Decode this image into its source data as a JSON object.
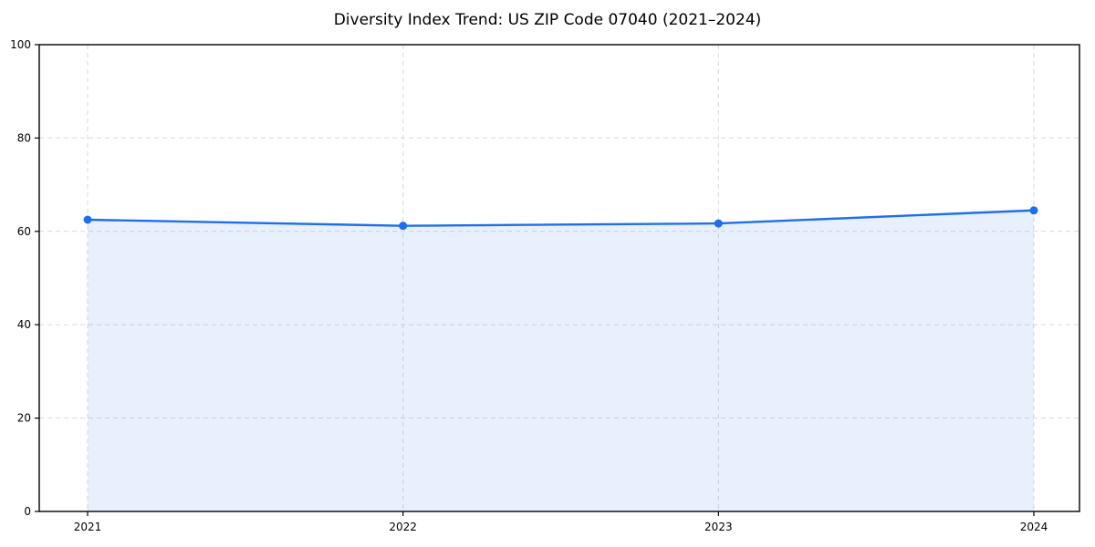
{
  "chart_data": {
    "type": "area",
    "title": "Diversity Index Trend: US ZIP Code 07040 (2021–2024)",
    "categories": [
      "2021",
      "2022",
      "2023",
      "2024"
    ],
    "series": [
      {
        "name": "Diversity Index",
        "values": [
          62.5,
          61.2,
          61.7,
          64.5
        ]
      }
    ],
    "xlabel": "",
    "ylabel": "",
    "ylim": [
      0,
      100
    ],
    "yticks": [
      0,
      20,
      40,
      60,
      80,
      100
    ],
    "grid": {
      "style": "dashed",
      "axes": "both"
    },
    "legend": "none",
    "colors": {
      "line": "#1f6feb",
      "marker": "#1f6feb",
      "fill": "rgba(31, 111, 235, 0.10)",
      "grid": "#d9d9d9",
      "spine": "#000000",
      "tick_text": "#000000",
      "background": "#ffffff"
    }
  }
}
